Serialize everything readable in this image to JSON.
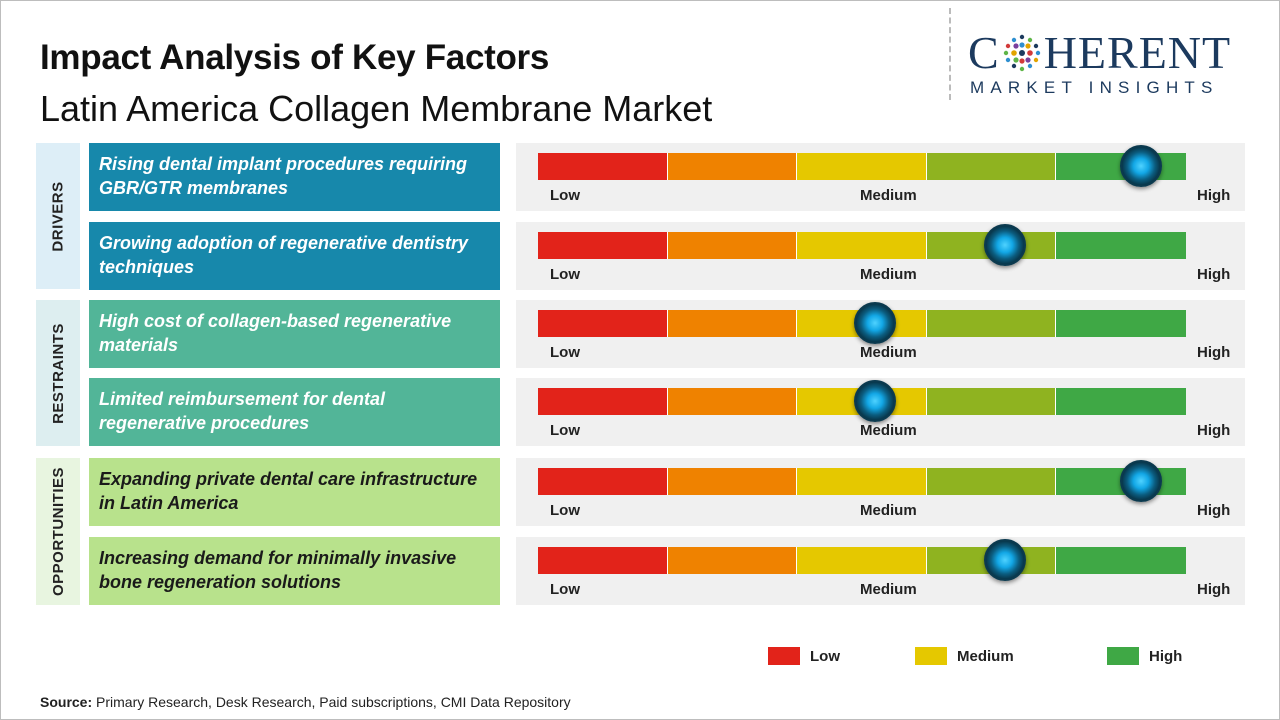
{
  "header": {
    "title": "Impact Analysis of Key Factors",
    "subtitle": "Latin America Collagen Membrane Market"
  },
  "logo": {
    "top_left": "C",
    "top_right": "HERENT",
    "bottom": "MARKET INSIGHTS",
    "color": "#1c3a5e"
  },
  "gauge_labels": {
    "low": "Low",
    "medium": "Medium",
    "high": "High"
  },
  "gauge_colors": [
    "#e2231a",
    "#ef8200",
    "#e5c800",
    "#8fb320",
    "#3fa845"
  ],
  "categories": [
    {
      "label": "DRIVERS",
      "bg": "#ddeef7"
    },
    {
      "label": "RESTRAINTS",
      "bg": "#ddeef0"
    },
    {
      "label": "OPPORTUNITIES",
      "bg": "#e8f5e0"
    }
  ],
  "chart_data": {
    "type": "gauge",
    "scale": [
      "Low",
      "Medium",
      "High"
    ],
    "scale_range": [
      0,
      1
    ],
    "factors": [
      {
        "category": "DRIVERS",
        "text": "Rising dental implant procedures requiring GBR/GTR membranes",
        "impact": 0.93,
        "bg": "#1788ab",
        "fg": "#ffffff"
      },
      {
        "category": "DRIVERS",
        "text": "Growing adoption of regenerative dentistry techniques",
        "impact": 0.72,
        "bg": "#1788ab",
        "fg": "#ffffff"
      },
      {
        "category": "RESTRAINTS",
        "text": "High cost of collagen-based regenerative materials",
        "impact": 0.52,
        "bg": "#52b598",
        "fg": "#ffffff"
      },
      {
        "category": "RESTRAINTS",
        "text": "Limited reimbursement for dental regenerative procedures",
        "impact": 0.52,
        "bg": "#52b598",
        "fg": "#ffffff"
      },
      {
        "category": "OPPORTUNITIES",
        "text": "Expanding private dental care infrastructure in Latin America",
        "impact": 0.93,
        "bg": "#b8e28c",
        "fg": "#1a1a1a"
      },
      {
        "category": "OPPORTUNITIES",
        "text": "Increasing demand for minimally invasive bone regeneration solutions",
        "impact": 0.72,
        "bg": "#b8e28c",
        "fg": "#1a1a1a"
      }
    ]
  },
  "legend": [
    {
      "label": "Low",
      "color": "#e2231a"
    },
    {
      "label": "Medium",
      "color": "#e5c800"
    },
    {
      "label": "High",
      "color": "#3fa845"
    }
  ],
  "source": {
    "label": "Source:",
    "text": " Primary Research, Desk Research, Paid subscriptions, CMI Data Repository"
  }
}
